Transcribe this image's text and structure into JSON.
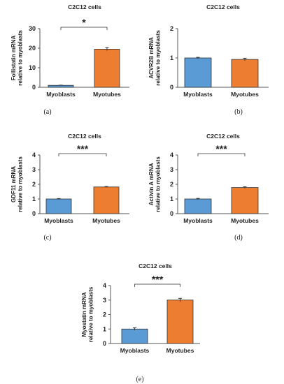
{
  "colors": {
    "myoblasts": "#5b9bd5",
    "myotubes": "#ed7d31"
  },
  "chart_data": [
    {
      "type": "bar",
      "panel": "(a)",
      "title": "C2C12 cells",
      "ylabel": [
        "Follistatin mRNA",
        "relative to myoblasts"
      ],
      "categories": [
        "Myoblasts",
        "Myotubes"
      ],
      "values": [
        1,
        19.5
      ],
      "errors": [
        0.1,
        0.8
      ],
      "ylim": [
        0,
        30
      ],
      "yticks": [
        "0",
        "10",
        "20",
        "30"
      ],
      "significance": "*"
    },
    {
      "type": "bar",
      "panel": "(b)",
      "title": "C2C12 cells",
      "ylabel": [
        "ACVR2B mRNA",
        "relative to myoblasts"
      ],
      "categories": [
        "Myoblasts",
        "Myotubes"
      ],
      "values": [
        1,
        0.95
      ],
      "errors": [
        0.02,
        0.04
      ],
      "ylim": [
        0,
        2
      ],
      "yticks": [
        "0",
        "1",
        "2"
      ],
      "significance": ""
    },
    {
      "type": "bar",
      "panel": "(c)",
      "title": "C2C12 cells",
      "ylabel": [
        "GDF11 mRNA",
        "relative to myoblasts"
      ],
      "categories": [
        "Myoblasts",
        "Myotubes"
      ],
      "values": [
        1,
        1.82
      ],
      "errors": [
        0.03,
        0.03
      ],
      "ylim": [
        0,
        4
      ],
      "yticks": [
        "0",
        "1",
        "2",
        "3",
        "4"
      ],
      "significance": "***"
    },
    {
      "type": "bar",
      "panel": "(d)",
      "title": "C2C12 cells",
      "ylabel": [
        "Activin A mRNA",
        "relative to myoblasts"
      ],
      "categories": [
        "Myoblasts",
        "Myotubes"
      ],
      "values": [
        1,
        1.78
      ],
      "errors": [
        0.04,
        0.05
      ],
      "ylim": [
        0,
        4
      ],
      "yticks": [
        "0",
        "1",
        "2",
        "3",
        "4"
      ],
      "significance": "***"
    },
    {
      "type": "bar",
      "panel": "(e)",
      "title": "C2C12 cells",
      "ylabel": [
        "Myostatin mRNA",
        "relative to myoblasts"
      ],
      "categories": [
        "Myoblasts",
        "Myotubes"
      ],
      "values": [
        1,
        3
      ],
      "errors": [
        0.08,
        0.12
      ],
      "ylim": [
        0,
        4
      ],
      "yticks": [
        "0",
        "1",
        "2",
        "3",
        "4"
      ],
      "significance": "***"
    }
  ]
}
